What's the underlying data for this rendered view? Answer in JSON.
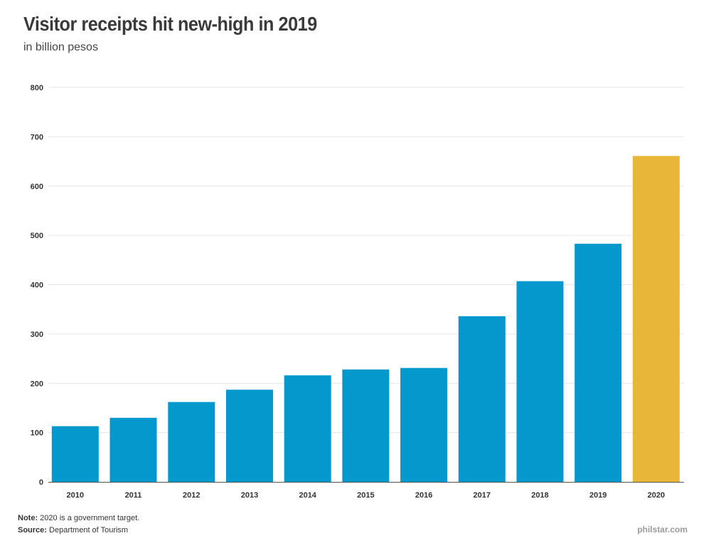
{
  "header": {
    "title": "Visitor receipts hit new-high in 2019",
    "subtitle": "in billion pesos"
  },
  "footer": {
    "note_label": "Note:",
    "note_text": "2020 is a government target.",
    "source_label": "Source:",
    "source_text": "Department of Tourism",
    "brand": "philstar.com"
  },
  "colors": {
    "actual": "#0498cd",
    "target": "#e8b73a",
    "grid": "#e6e6e6",
    "axis": "#555555",
    "tick_text": "#333333"
  },
  "chart_data": {
    "type": "bar",
    "title": "Visitor receipts hit new-high in 2019",
    "subtitle": "in billion pesos",
    "xlabel": "",
    "ylabel": "",
    "categories": [
      "2010",
      "2011",
      "2012",
      "2013",
      "2014",
      "2015",
      "2016",
      "2017",
      "2018",
      "2019",
      "2020"
    ],
    "values": [
      113,
      130,
      162,
      187,
      216,
      228,
      231,
      336,
      407,
      483,
      661
    ],
    "bar_kind": [
      "actual",
      "actual",
      "actual",
      "actual",
      "actual",
      "actual",
      "actual",
      "actual",
      "actual",
      "actual",
      "target"
    ],
    "ylim": [
      0,
      800
    ],
    "yticks": [
      0,
      100,
      200,
      300,
      400,
      500,
      600,
      700,
      800
    ],
    "grid": true,
    "legend": "none"
  }
}
